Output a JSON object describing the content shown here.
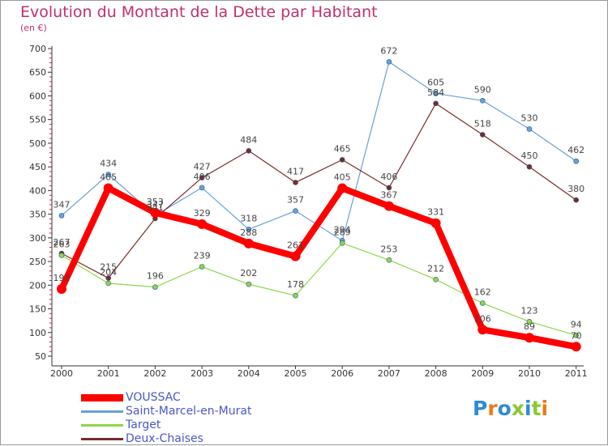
{
  "header": {
    "title": "Evolution du Montant de la Dette par Habitant",
    "subtitle": "(en €)"
  },
  "chart_data": {
    "type": "line",
    "x": [
      "2000",
      "2001",
      "2002",
      "2003",
      "2004",
      "2005",
      "2006",
      "2007",
      "2008",
      "2009",
      "2010",
      "2011"
    ],
    "yticks": [
      50,
      100,
      150,
      200,
      250,
      300,
      350,
      400,
      450,
      500,
      550,
      600,
      650,
      700
    ],
    "ylim": [
      50,
      700
    ],
    "grid": false,
    "legend_position": "bottom-left",
    "series": [
      {
        "name": "VOUSSAC",
        "color": "#ff0000",
        "values": [
          192,
          405,
          353,
          329,
          288,
          261,
          405,
          367,
          331,
          106,
          89,
          70
        ]
      },
      {
        "name": "Saint-Marcel-en-Murat",
        "color": "#6aa0d8",
        "values": [
          347,
          434,
          347,
          406,
          318,
          357,
          294,
          672,
          605,
          590,
          530,
          462
        ]
      },
      {
        "name": "Target",
        "color": "#8fd64a",
        "values": [
          263,
          204,
          196,
          239,
          202,
          178,
          289,
          253,
          212,
          162,
          123,
          94
        ]
      },
      {
        "name": "Deux-Chaises",
        "color": "#7a2a2a",
        "values": [
          267,
          215,
          341,
          427,
          484,
          417,
          465,
          406,
          584,
          518,
          450,
          380
        ]
      }
    ]
  },
  "logo": {
    "text": "Proxiti",
    "colors": [
      "#2e8bd6",
      "#ee7a1b",
      "#2e8bd6",
      "#8ac832",
      "#2e8bd6",
      "#8ac832",
      "#ee7a1b"
    ]
  }
}
